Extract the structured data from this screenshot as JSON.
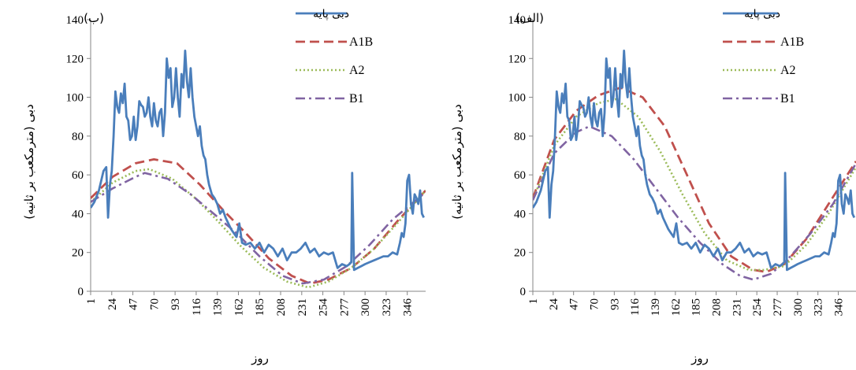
{
  "chart_data": [
    {
      "type": "line",
      "panel_label": "(ب)",
      "ylabel": "دبی (مترمکعب بر ثانیه)",
      "xlabel": "روز",
      "ylim": [
        0,
        140
      ],
      "yticks": [
        0,
        20,
        40,
        60,
        80,
        100,
        120,
        140
      ],
      "xlim": [
        1,
        366
      ],
      "xticks": [
        1,
        24,
        47,
        70,
        93,
        116,
        139,
        162,
        185,
        208,
        231,
        254,
        277,
        300,
        323,
        346
      ],
      "grid": false,
      "legend_position": "top-right",
      "series": [
        {
          "name": "دبی پایه",
          "color": "#4a7ebb",
          "style": "solid",
          "x": [
            1,
            5,
            10,
            15,
            18,
            20,
            22,
            24,
            26,
            28,
            30,
            32,
            34,
            36,
            38,
            40,
            42,
            44,
            46,
            48,
            50,
            52,
            54,
            56,
            58,
            60,
            62,
            64,
            66,
            68,
            70,
            72,
            74,
            76,
            78,
            80,
            82,
            84,
            86,
            88,
            90,
            92,
            94,
            96,
            98,
            100,
            102,
            104,
            106,
            108,
            110,
            112,
            114,
            116,
            118,
            120,
            122,
            124,
            126,
            128,
            130,
            133,
            136,
            139,
            142,
            145,
            148,
            151,
            154,
            157,
            160,
            163,
            166,
            170,
            175,
            180,
            185,
            190,
            195,
            200,
            205,
            210,
            215,
            220,
            225,
            230,
            235,
            240,
            245,
            250,
            255,
            260,
            265,
            270,
            275,
            280,
            283,
            285,
            286,
            288,
            292,
            296,
            300,
            305,
            310,
            315,
            320,
            325,
            330,
            335,
            338,
            340,
            342,
            344,
            346,
            348,
            350,
            352,
            354,
            356,
            358,
            360,
            362,
            364
          ],
          "y": [
            43,
            46,
            52,
            62,
            64,
            38,
            55,
            62,
            80,
            103,
            95,
            92,
            102,
            97,
            107,
            90,
            88,
            78,
            80,
            90,
            78,
            85,
            98,
            96,
            95,
            90,
            92,
            100,
            90,
            85,
            97,
            88,
            85,
            92,
            94,
            80,
            92,
            120,
            110,
            115,
            95,
            100,
            115,
            100,
            90,
            112,
            105,
            124,
            108,
            100,
            115,
            100,
            90,
            85,
            80,
            85,
            75,
            70,
            68,
            60,
            55,
            50,
            48,
            45,
            40,
            42,
            38,
            35,
            32,
            30,
            28,
            35,
            25,
            24,
            25,
            22,
            25,
            20,
            24,
            22,
            18,
            22,
            16,
            20,
            20,
            22,
            25,
            20,
            22,
            18,
            20,
            19,
            20,
            12,
            14,
            13,
            14,
            15,
            61,
            11,
            12,
            13,
            14,
            15,
            16,
            17,
            18,
            18,
            20,
            19,
            25,
            30,
            28,
            35,
            57,
            60,
            45,
            40,
            50,
            48,
            45,
            52,
            40,
            38
          ]
        },
        {
          "name": "A1B",
          "color": "#c0504d",
          "style": "dashed",
          "x": [
            1,
            25,
            50,
            70,
            95,
            120,
            145,
            170,
            195,
            220,
            240,
            260,
            285,
            310,
            335,
            366
          ],
          "y": [
            48,
            59,
            66,
            68,
            66,
            55,
            42,
            30,
            17,
            8,
            4,
            6,
            12,
            22,
            36,
            52
          ]
        },
        {
          "name": "A2",
          "color": "#9bbb59",
          "style": "dotted",
          "x": [
            1,
            25,
            50,
            65,
            90,
            115,
            140,
            165,
            190,
            215,
            238,
            260,
            285,
            310,
            335,
            366
          ],
          "y": [
            46,
            56,
            62,
            63,
            58,
            48,
            36,
            23,
            12,
            5,
            2,
            5,
            12,
            22,
            35,
            52
          ]
        },
        {
          "name": "B1",
          "color": "#8064a2",
          "style": "dashdot",
          "x": [
            1,
            25,
            50,
            60,
            85,
            110,
            135,
            160,
            185,
            210,
            232,
            255,
            280,
            305,
            330,
            366
          ],
          "y": [
            46,
            53,
            59,
            61,
            58,
            50,
            40,
            30,
            18,
            8,
            4,
            6,
            13,
            24,
            37,
            51
          ]
        }
      ]
    },
    {
      "type": "line",
      "panel_label": "(الف)",
      "ylabel": "دبی (مترمکعب بر ثانیه)",
      "xlabel": "روز",
      "ylim": [
        0,
        140
      ],
      "yticks": [
        0,
        20,
        40,
        60,
        80,
        100,
        120,
        140
      ],
      "xlim": [
        1,
        366
      ],
      "xticks": [
        1,
        24,
        47,
        70,
        93,
        116,
        139,
        162,
        185,
        208,
        231,
        254,
        277,
        300,
        323,
        346
      ],
      "grid": false,
      "legend_position": "top-right",
      "series": [
        {
          "name": "دبی پایه",
          "color": "#4a7ebb",
          "style": "solid",
          "x": [
            1,
            5,
            10,
            15,
            18,
            20,
            22,
            24,
            26,
            28,
            30,
            32,
            34,
            36,
            38,
            40,
            42,
            44,
            46,
            48,
            50,
            52,
            54,
            56,
            58,
            60,
            62,
            64,
            66,
            68,
            70,
            72,
            74,
            76,
            78,
            80,
            82,
            84,
            86,
            88,
            90,
            92,
            94,
            96,
            98,
            100,
            102,
            104,
            106,
            108,
            110,
            112,
            114,
            116,
            118,
            120,
            122,
            124,
            126,
            128,
            130,
            133,
            136,
            139,
            142,
            145,
            148,
            151,
            154,
            157,
            160,
            163,
            166,
            170,
            175,
            180,
            185,
            190,
            195,
            200,
            205,
            210,
            215,
            220,
            225,
            230,
            235,
            240,
            245,
            250,
            255,
            260,
            265,
            270,
            275,
            280,
            283,
            285,
            286,
            288,
            292,
            296,
            300,
            305,
            310,
            315,
            320,
            325,
            330,
            335,
            338,
            340,
            342,
            344,
            346,
            348,
            350,
            352,
            354,
            356,
            358,
            360,
            362,
            364
          ],
          "y": [
            43,
            46,
            52,
            62,
            64,
            38,
            55,
            62,
            80,
            103,
            95,
            92,
            102,
            97,
            107,
            90,
            88,
            78,
            80,
            90,
            78,
            85,
            98,
            96,
            95,
            90,
            92,
            100,
            90,
            85,
            97,
            88,
            85,
            92,
            94,
            80,
            92,
            120,
            110,
            115,
            95,
            100,
            115,
            100,
            90,
            112,
            105,
            124,
            108,
            100,
            115,
            100,
            90,
            85,
            80,
            85,
            75,
            70,
            68,
            60,
            55,
            50,
            48,
            45,
            40,
            42,
            38,
            35,
            32,
            30,
            28,
            35,
            25,
            24,
            25,
            22,
            25,
            20,
            24,
            22,
            18,
            22,
            16,
            20,
            20,
            22,
            25,
            20,
            22,
            18,
            20,
            19,
            20,
            12,
            14,
            13,
            14,
            15,
            61,
            11,
            12,
            13,
            14,
            15,
            16,
            17,
            18,
            18,
            20,
            19,
            25,
            30,
            28,
            35,
            57,
            60,
            45,
            40,
            50,
            48,
            45,
            52,
            40,
            38
          ]
        },
        {
          "name": "A1B",
          "color": "#c0504d",
          "style": "dashed",
          "x": [
            1,
            25,
            50,
            75,
            100,
            125,
            150,
            175,
            200,
            225,
            250,
            265,
            285,
            310,
            335,
            366
          ],
          "y": [
            48,
            78,
            93,
            101,
            105,
            100,
            85,
            60,
            35,
            18,
            11,
            10,
            14,
            27,
            45,
            67
          ]
        },
        {
          "name": "A2",
          "color": "#9bbb59",
          "style": "dotted",
          "x": [
            1,
            25,
            50,
            75,
            95,
            120,
            145,
            170,
            195,
            220,
            245,
            262,
            285,
            310,
            335,
            366
          ],
          "y": [
            47,
            75,
            90,
            97,
            99,
            90,
            72,
            50,
            30,
            16,
            11,
            11,
            13,
            24,
            40,
            64
          ]
        },
        {
          "name": "B1",
          "color": "#8064a2",
          "style": "dashdot",
          "x": [
            1,
            25,
            50,
            65,
            90,
            115,
            140,
            165,
            190,
            215,
            235,
            250,
            270,
            290,
            315,
            340,
            366
          ],
          "y": [
            47,
            71,
            82,
            85,
            80,
            68,
            53,
            38,
            25,
            14,
            8,
            6,
            9,
            17,
            30,
            45,
            66
          ]
        }
      ]
    }
  ]
}
